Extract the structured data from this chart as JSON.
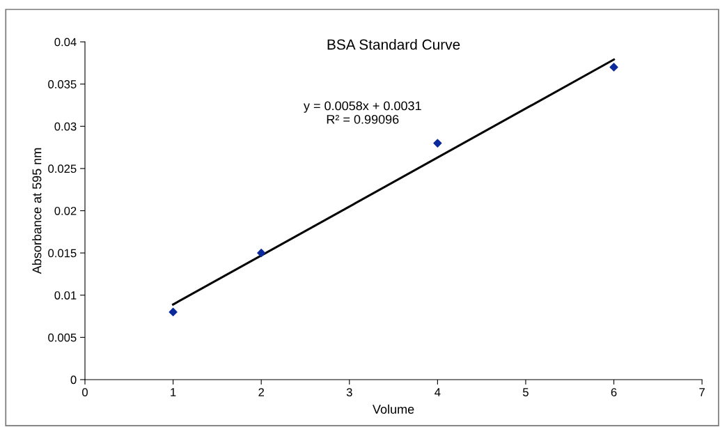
{
  "chart_data": {
    "type": "scatter",
    "title": "BSA Standard Curve",
    "xlabel": "Volume",
    "ylabel": "Absorbance at 595 nm",
    "annotations": [
      "y = 0.0058x + 0.0031\nR² = 0.99096"
    ],
    "series": [
      {
        "color": "#0b2a9c",
        "x": [
          1,
          2,
          4,
          6
        ],
        "values": [
          0.008,
          0.015,
          0.028,
          0.037
        ],
        "marker": "diamond"
      },
      {
        "type": "line",
        "color": "#000000",
        "x": [
          1,
          6
        ],
        "values": [
          0.0089,
          0.0379
        ],
        "line_style": "solid"
      }
    ],
    "xlim": [
      0,
      7
    ],
    "xticks": [
      0,
      1,
      2,
      3,
      4,
      5,
      6,
      7
    ],
    "ylim": [
      0,
      0.04
    ],
    "yticks": [
      {
        "value": 0,
        "label": "0"
      },
      {
        "value": 0.005,
        "label": "0.005"
      },
      {
        "value": 0.01,
        "label": "0.01"
      },
      {
        "value": 0.015,
        "label": "0.015"
      },
      {
        "value": 0.02,
        "label": "0.02"
      },
      {
        "value": 0.025,
        "label": "0.025"
      },
      {
        "value": 0.03,
        "label": "0.03"
      },
      {
        "value": 0.035,
        "label": "0.035"
      },
      {
        "value": 0.04,
        "label": "0.04"
      }
    ],
    "grid": false,
    "legend": false
  }
}
